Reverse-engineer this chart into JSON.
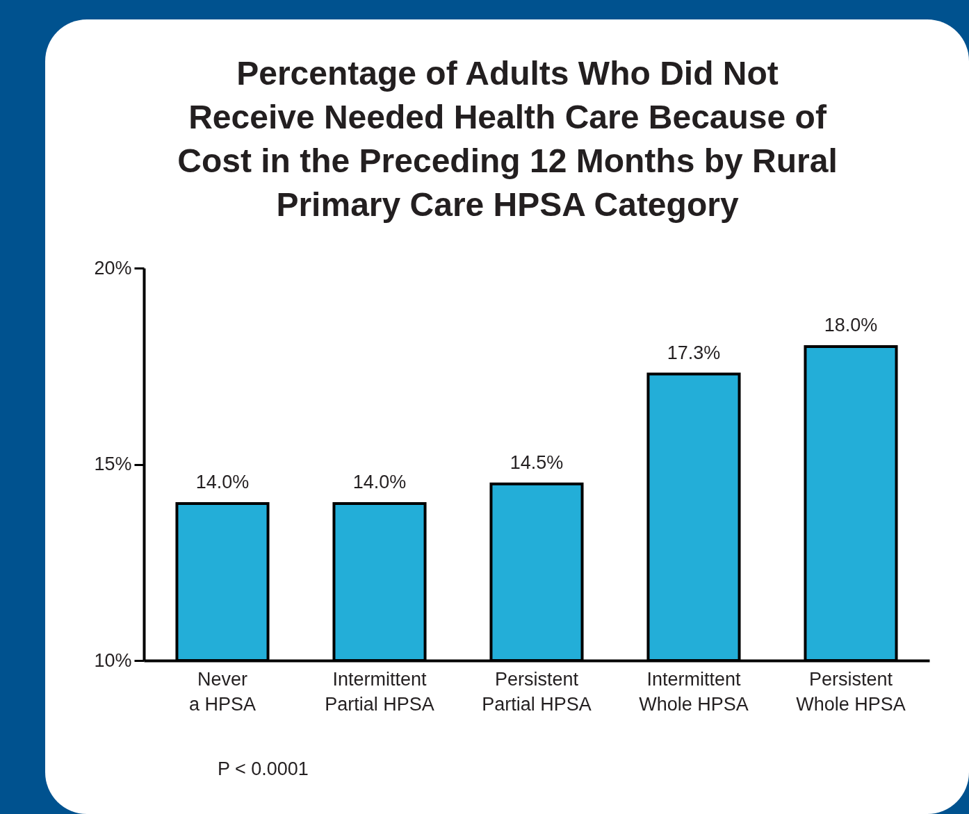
{
  "chart_data": {
    "type": "bar",
    "title": "Percentage of Adults Who Did Not Receive Needed Health Care Because of Cost in the Preceding 12 Months by Rural Primary Care HPSA Category",
    "categories": [
      "Never a HPSA",
      "Intermittent Partial HPSA",
      "Persistent Partial HPSA",
      "Intermittent Whole HPSA",
      "Persistent Whole HPSA"
    ],
    "values": [
      14.0,
      14.0,
      14.5,
      17.3,
      18.0
    ],
    "value_labels": [
      "14.0%",
      "14.0%",
      "14.5%",
      "17.3%",
      "18.0%"
    ],
    "color": "#23aed8",
    "ylim": [
      10,
      20
    ],
    "yticks": [
      {
        "value": 10,
        "label": "10%"
      },
      {
        "value": 15,
        "label": "15%"
      },
      {
        "value": 20,
        "label": "20%"
      }
    ],
    "grid": false,
    "annotations": [
      "P < 0.0001"
    ]
  }
}
